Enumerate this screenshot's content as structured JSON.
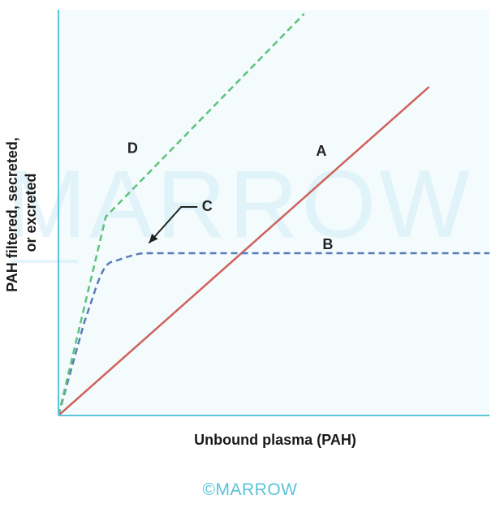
{
  "chart_data": {
    "type": "line",
    "xlabel": "Unbound plasma (PAH)",
    "ylabel_lines": [
      "PAH filtered, secreted,",
      "or excreted"
    ],
    "xlim": [
      0,
      10
    ],
    "ylim": [
      0,
      10
    ],
    "grid": false,
    "series": [
      {
        "name": "A",
        "style": "solid",
        "color": "#d0625c",
        "x": [
          0,
          8.6
        ],
        "y": [
          0,
          8.1
        ]
      },
      {
        "name": "B",
        "style": "dashed",
        "color": "#5b7bb8",
        "x": [
          0,
          0.6,
          0.9,
          1.3,
          2.0,
          10.0
        ],
        "y": [
          0,
          2.3,
          3.2,
          3.8,
          4.0,
          4.0
        ]
      },
      {
        "name": "D",
        "style": "dashed",
        "color": "#5dc37a",
        "x": [
          0,
          1.1,
          5.7
        ],
        "y": [
          0,
          4.9,
          9.9
        ]
      }
    ],
    "annotations": [
      {
        "text": "A",
        "series": "A"
      },
      {
        "text": "B",
        "series": "B"
      },
      {
        "text": "C",
        "points_to": "transition of curve B"
      },
      {
        "text": "D",
        "series": "D"
      }
    ]
  },
  "watermark": "MARROW",
  "footer": "©MARROW",
  "colors": {
    "plot_background": "#f3fbfd",
    "axis": "#5bc7d6",
    "line_a": "#d0625c",
    "line_b": "#5b7bb8",
    "line_d": "#5dc37a"
  }
}
